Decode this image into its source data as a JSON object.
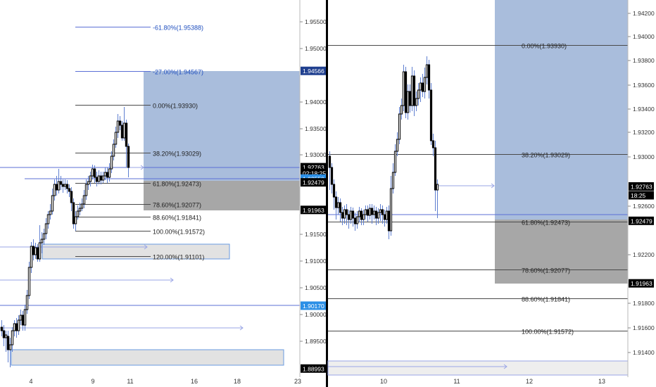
{
  "colors": {
    "background": "#ffffff",
    "zone_blue": "#a9bddc",
    "zone_grey": "#a7a7a7",
    "level_line": "#5b6fd6",
    "fib_line": "#4a4a4a",
    "bull_candle": "#ffffff",
    "bear_candle": "#000000",
    "tag_blue": "#1f3f8f",
    "tag_light_blue": "#2b8fe6",
    "tag_black": "#000000",
    "divider": "#000000"
  },
  "chart_data": [
    {
      "type": "candlestick",
      "title": "",
      "xlabel": "",
      "ylabel": "",
      "x_ticks": [
        "4",
        "9",
        "11",
        "16",
        "18",
        "23"
      ],
      "y_ticks": [
        "1.95500",
        "1.95000",
        "1.94000",
        "1.93500",
        "1.93000",
        "1.91500",
        "1.91000",
        "1.90500",
        "1.90000",
        "1.89500"
      ],
      "ylim": [
        1.887,
        1.959
      ],
      "fib_levels": [
        {
          "label": "-61.80%(1.95388)",
          "price": 1.95388,
          "blue": true
        },
        {
          "label": "-27.00%(1.94567)",
          "price": 1.94567,
          "blue": true
        },
        {
          "label": "0.00%(1.93930)",
          "price": 1.9393
        },
        {
          "label": "38.20%(1.93029)",
          "price": 1.93029
        },
        {
          "label": "61.80%(1.92473)",
          "price": 1.92473
        },
        {
          "label": "78.60%(1.92077)",
          "price": 1.92077
        },
        {
          "label": "88.60%(1.91841)",
          "price": 1.91841
        },
        {
          "label": "100.00%(1.91572)",
          "price": 1.91572
        },
        {
          "label": "120.00%(1.91101)",
          "price": 1.91101
        }
      ],
      "price_tags": [
        {
          "text": "1.94566",
          "price": 1.94566,
          "style": "dark-blue"
        },
        {
          "text": "1.92763",
          "price": 1.92763,
          "style": "black"
        },
        {
          "text": "02:18:25",
          "price": 1.92655,
          "style": "black"
        },
        {
          "text": "1.92550",
          "price": 1.9255,
          "style": "light-blue"
        },
        {
          "text": "1.92479",
          "price": 1.92479,
          "style": "black"
        },
        {
          "text": "1.91963",
          "price": 1.91963,
          "style": "black"
        },
        {
          "text": "1.90170",
          "price": 1.9017,
          "style": "light-blue"
        },
        {
          "text": "1.88993",
          "price": 1.88993,
          "style": "black"
        }
      ]
    },
    {
      "type": "candlestick",
      "title": "",
      "xlabel": "",
      "ylabel": "",
      "x_ticks": [
        "10",
        "11",
        "12",
        "13"
      ],
      "y_ticks": [
        "1.94200",
        "1.94000",
        "1.93800",
        "1.93600",
        "1.93400",
        "1.93200",
        "1.93000",
        "1.92600",
        "1.92200",
        "1.91800",
        "1.91600",
        "1.91400"
      ],
      "ylim": [
        1.9122,
        1.9432
      ],
      "fib_levels": [
        {
          "label": "0.00%(1.93930)",
          "price": 1.9393
        },
        {
          "label": "38.20%(1.93029)",
          "price": 1.93029
        },
        {
          "label": "61.80%(1.92473)",
          "price": 1.92473
        },
        {
          "label": "78.60%(1.92077)",
          "price": 1.92077
        },
        {
          "label": "88.60%(1.91841)",
          "price": 1.91841
        },
        {
          "label": "100.00%(1.91572)",
          "price": 1.91572
        }
      ],
      "price_tags": [
        {
          "text": "1.92763",
          "price": 1.92763,
          "style": "black"
        },
        {
          "text": "18:25",
          "price": 1.9269,
          "style": "black"
        },
        {
          "text": "1.92479",
          "price": 1.92479,
          "style": "black"
        },
        {
          "text": "1.91963",
          "price": 1.91963,
          "style": "black"
        }
      ]
    }
  ]
}
